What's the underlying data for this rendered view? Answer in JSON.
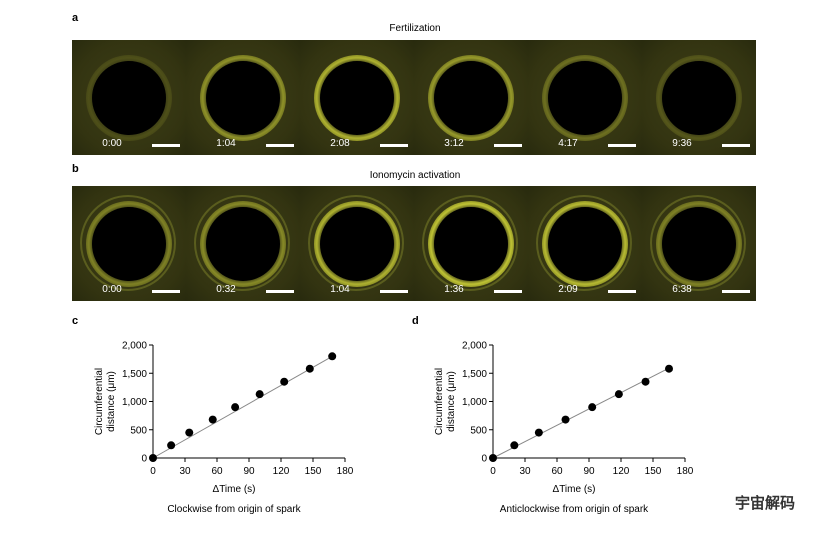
{
  "panel_a": {
    "letter": "a",
    "title": "Fertilization",
    "times": [
      "0:00",
      "1:04",
      "2:08",
      "3:12",
      "4:17",
      "9:36"
    ],
    "ring_intensity": [
      0.15,
      0.55,
      0.75,
      0.6,
      0.35,
      0.2
    ]
  },
  "panel_b": {
    "letter": "b",
    "title": "Ionomycin activation",
    "times": [
      "0:00",
      "0:32",
      "1:04",
      "1:36",
      "2:09",
      "6:38"
    ],
    "ring_intensity": [
      0.45,
      0.5,
      0.75,
      0.85,
      0.8,
      0.45
    ]
  },
  "colors": {
    "fluorescence": "#d8dc3a",
    "background": "#323311"
  },
  "chart_data": [
    {
      "type": "scatter",
      "panel_letter": "c",
      "xlabel": "ΔTime (s)",
      "ylabel": "Circumferential distance (μm)",
      "ylabel_lines": [
        "Circumferential",
        "distance (μm)"
      ],
      "caption": "Clockwise from origin of spark",
      "xlim": [
        0,
        180
      ],
      "ylim": [
        0,
        2000
      ],
      "xticks": [
        0,
        30,
        60,
        90,
        120,
        150,
        180
      ],
      "yticks": [
        0,
        500,
        1000,
        1500,
        2000
      ],
      "ytick_labels": [
        "0",
        "500",
        "1,000",
        "1,500",
        "2,000"
      ],
      "x": [
        0,
        17,
        34,
        56,
        77,
        100,
        123,
        147,
        168
      ],
      "y": [
        0,
        225,
        450,
        680,
        900,
        1130,
        1350,
        1580,
        1800
      ],
      "fit_line": {
        "x": [
          0,
          170
        ],
        "y": [
          0,
          1820
        ]
      }
    },
    {
      "type": "scatter",
      "panel_letter": "d",
      "xlabel": "ΔTime (s)",
      "ylabel": "Circumferential distance (μm)",
      "ylabel_lines": [
        "Circumferential",
        "distance (μm)"
      ],
      "caption": "Anticlockwise from origin of spark",
      "xlim": [
        0,
        180
      ],
      "ylim": [
        0,
        2000
      ],
      "xticks": [
        0,
        30,
        60,
        90,
        120,
        150,
        180
      ],
      "yticks": [
        0,
        500,
        1000,
        1500,
        2000
      ],
      "ytick_labels": [
        "0",
        "500",
        "1,000",
        "1,500",
        "2,000"
      ],
      "x": [
        0,
        20,
        43,
        68,
        93,
        118,
        143,
        165
      ],
      "y": [
        0,
        225,
        450,
        680,
        900,
        1130,
        1350,
        1580
      ],
      "fit_line": {
        "x": [
          0,
          168
        ],
        "y": [
          0,
          1620
        ]
      }
    }
  ],
  "watermark": "宇宙解码"
}
